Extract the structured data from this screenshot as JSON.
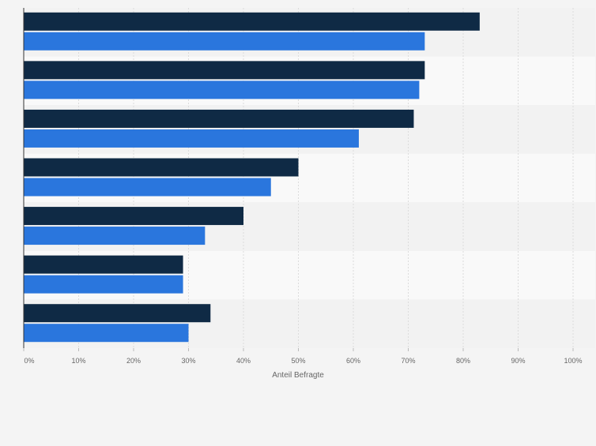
{
  "chart_data": {
    "type": "bar",
    "orientation": "horizontal",
    "categories": [
      "",
      "",
      "",
      "",
      "",
      "",
      ""
    ],
    "series": [
      {
        "color": "#0f2a45",
        "values": [
          83,
          73,
          71,
          50,
          40,
          29,
          34
        ]
      },
      {
        "color": "#2a76dd",
        "values": [
          73,
          72,
          61,
          45,
          33,
          29,
          30
        ]
      }
    ],
    "xlabel": "Anteil Befragte",
    "ylabel": "",
    "xlim": [
      0,
      100
    ],
    "xticks": [
      0,
      10,
      20,
      30,
      40,
      50,
      60,
      70,
      80,
      90,
      100
    ],
    "xtick_labels": [
      "0%",
      "10%",
      "20%",
      "30%",
      "40%",
      "50%",
      "60%",
      "70%",
      "80%",
      "90%",
      "100%"
    ],
    "grid": true,
    "legend": "none"
  }
}
